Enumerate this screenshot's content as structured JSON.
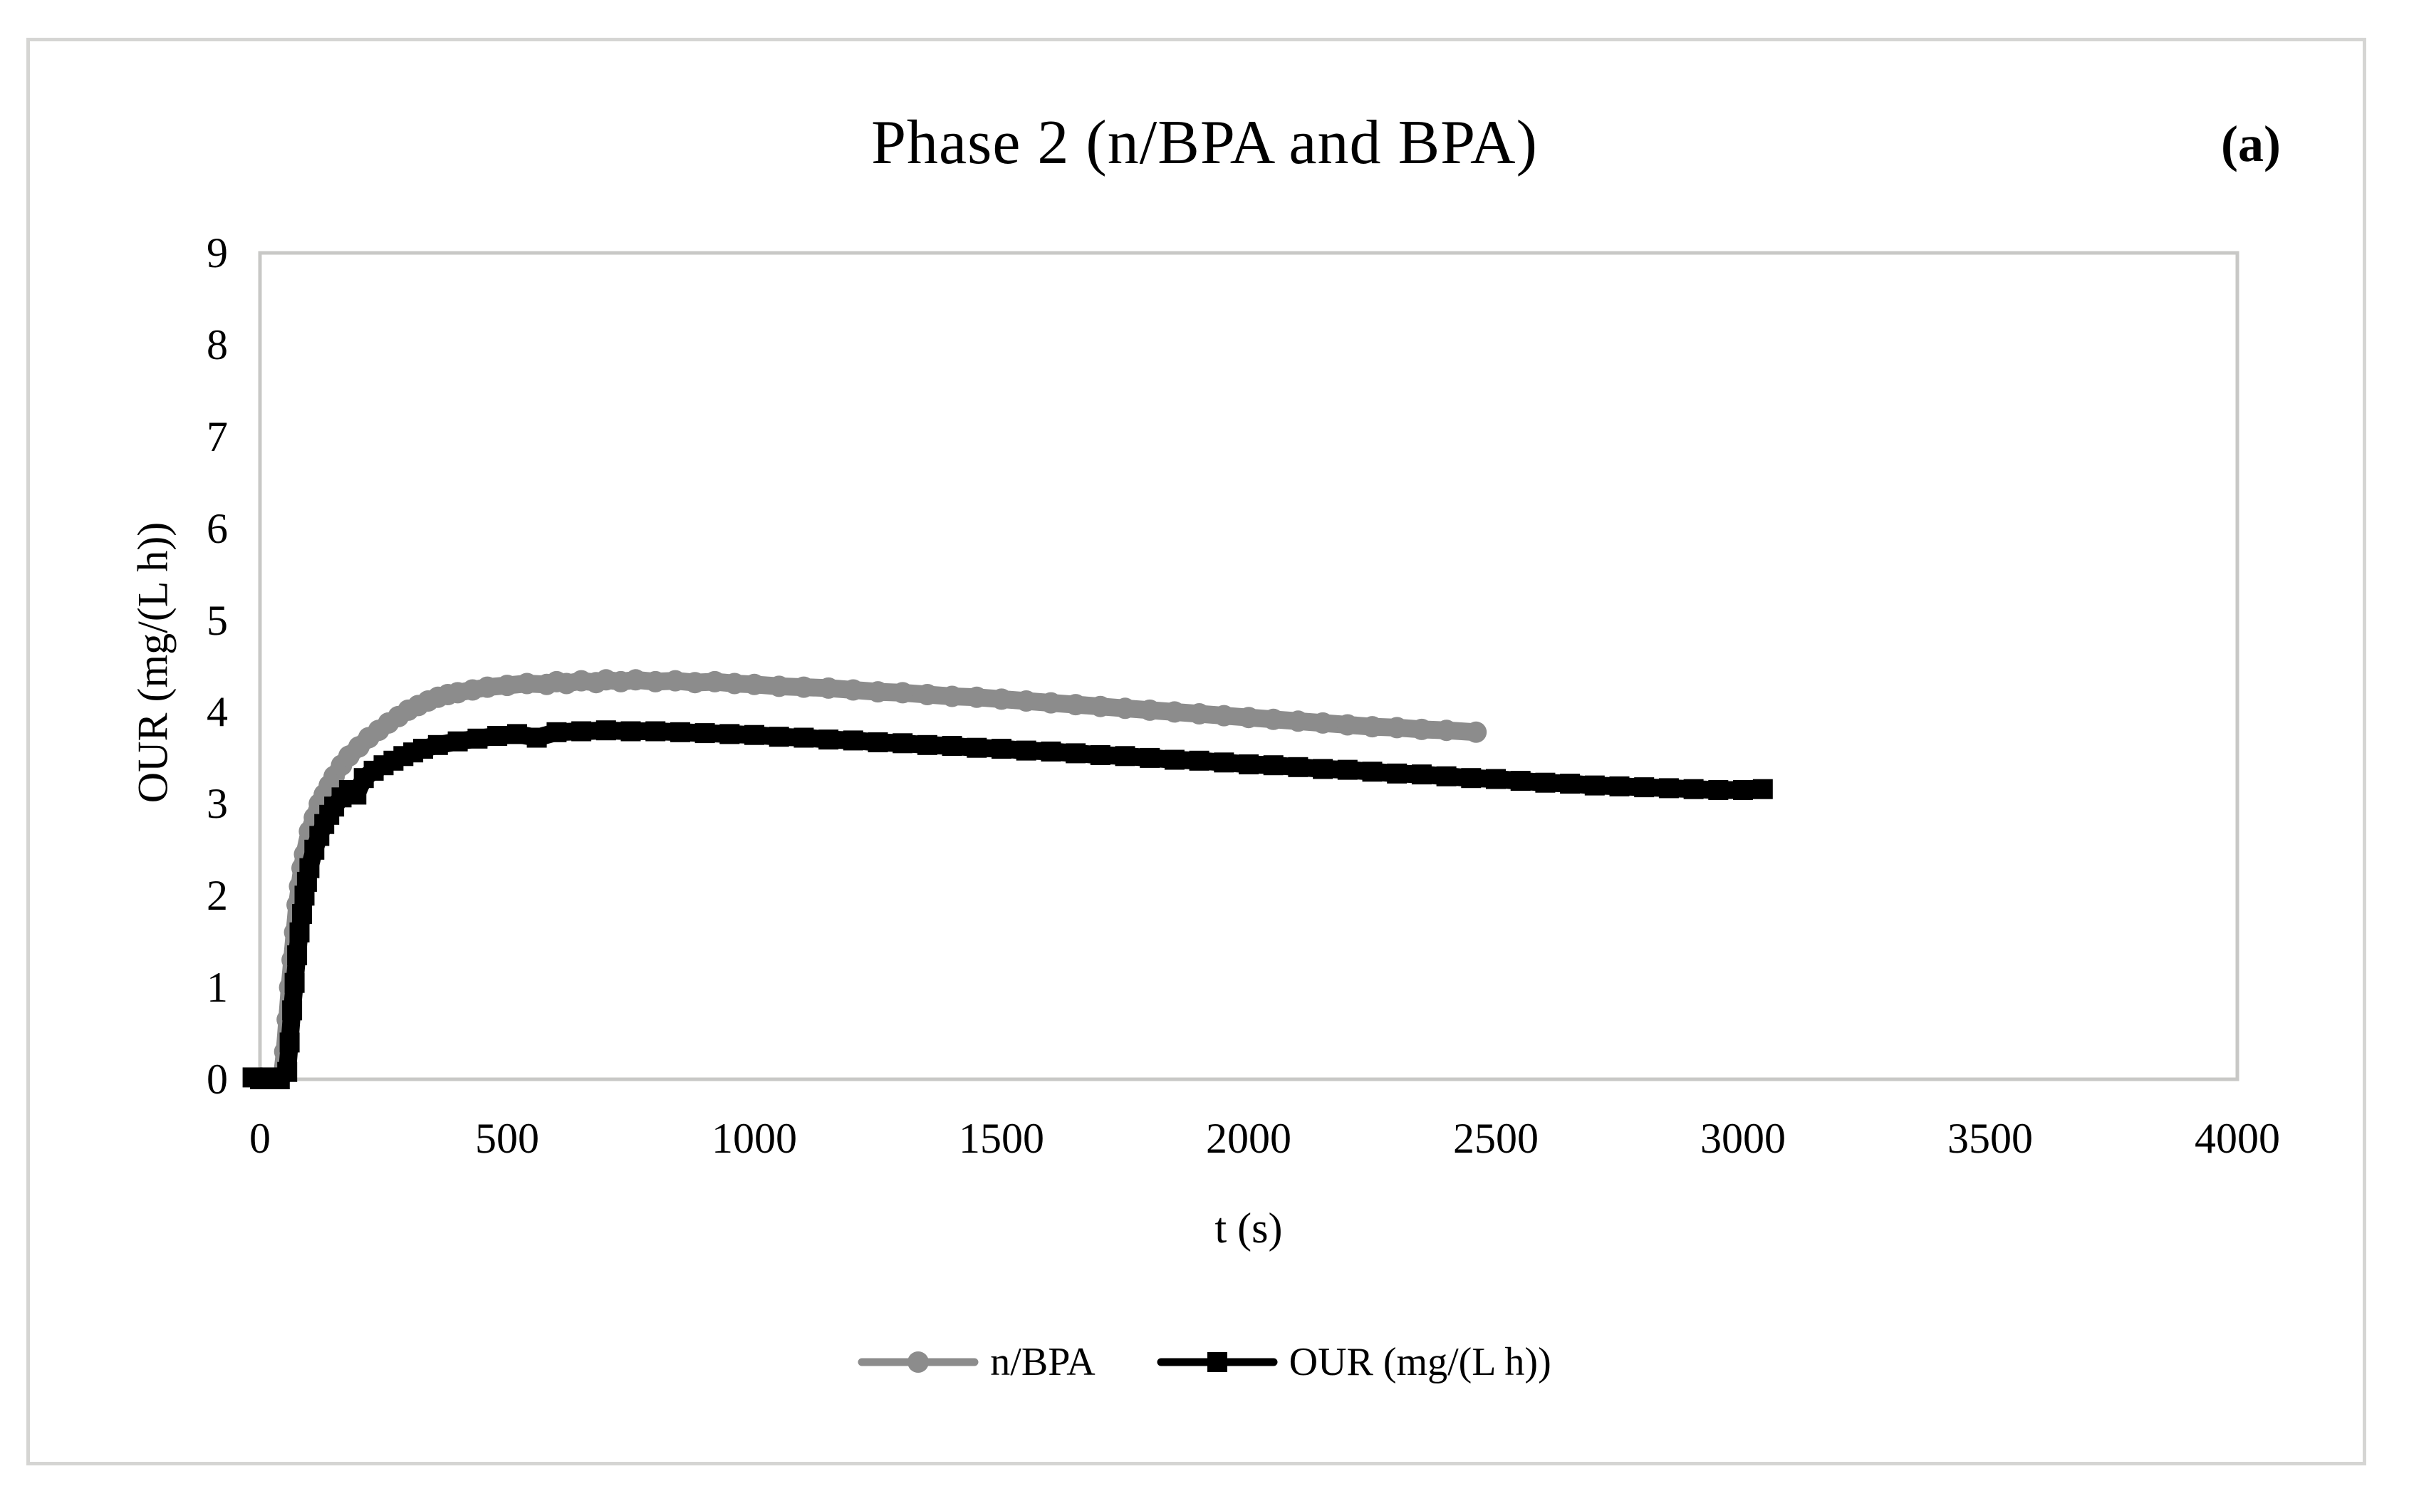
{
  "figure": {
    "panel_label": "(a)"
  },
  "chart_data": {
    "type": "line",
    "title": "Phase 2 (n/BPA and BPA)",
    "xlabel": "t (s)",
    "ylabel": "OUR (mg/(L h))",
    "xlim": [
      0,
      4000
    ],
    "ylim": [
      0,
      9
    ],
    "x_ticks": [
      0,
      500,
      1000,
      1500,
      2000,
      2500,
      3000,
      3500,
      4000
    ],
    "y_ticks": [
      0,
      1,
      2,
      3,
      4,
      5,
      6,
      7,
      8,
      9
    ],
    "grid": false,
    "legend_position": "bottom-center",
    "plot_frame_color": "#c8c8c6",
    "series": [
      {
        "name": "n/BPA",
        "color": "#8c8c8c",
        "marker": "circle",
        "points": [
          [
            45,
            0.05
          ],
          [
            50,
            0.3
          ],
          [
            55,
            0.65
          ],
          [
            60,
            1.0
          ],
          [
            65,
            1.3
          ],
          [
            70,
            1.6
          ],
          [
            75,
            1.9
          ],
          [
            80,
            2.1
          ],
          [
            85,
            2.3
          ],
          [
            90,
            2.45
          ],
          [
            100,
            2.7
          ],
          [
            110,
            2.85
          ],
          [
            120,
            3.0
          ],
          [
            130,
            3.1
          ],
          [
            140,
            3.2
          ],
          [
            150,
            3.3
          ],
          [
            165,
            3.42
          ],
          [
            180,
            3.52
          ],
          [
            200,
            3.62
          ],
          [
            220,
            3.72
          ],
          [
            240,
            3.8
          ],
          [
            260,
            3.88
          ],
          [
            280,
            3.95
          ],
          [
            300,
            4.02
          ],
          [
            320,
            4.07
          ],
          [
            340,
            4.12
          ],
          [
            360,
            4.16
          ],
          [
            380,
            4.19
          ],
          [
            400,
            4.21
          ],
          [
            430,
            4.24
          ],
          [
            460,
            4.27
          ],
          [
            500,
            4.29
          ],
          [
            540,
            4.31
          ],
          [
            580,
            4.3
          ],
          [
            600,
            4.33
          ],
          [
            620,
            4.31
          ],
          [
            650,
            4.34
          ],
          [
            680,
            4.32
          ],
          [
            700,
            4.35
          ],
          [
            730,
            4.33
          ],
          [
            760,
            4.35
          ],
          [
            800,
            4.33
          ],
          [
            840,
            4.34
          ],
          [
            880,
            4.32
          ],
          [
            920,
            4.33
          ],
          [
            960,
            4.31
          ],
          [
            1000,
            4.3
          ],
          [
            1050,
            4.28
          ],
          [
            1100,
            4.27
          ],
          [
            1150,
            4.26
          ],
          [
            1200,
            4.24
          ],
          [
            1250,
            4.22
          ],
          [
            1300,
            4.21
          ],
          [
            1350,
            4.19
          ],
          [
            1400,
            4.17
          ],
          [
            1450,
            4.16
          ],
          [
            1500,
            4.14
          ],
          [
            1550,
            4.12
          ],
          [
            1600,
            4.1
          ],
          [
            1650,
            4.08
          ],
          [
            1700,
            4.06
          ],
          [
            1750,
            4.04
          ],
          [
            1800,
            4.02
          ],
          [
            1850,
            4.0
          ],
          [
            1900,
            3.98
          ],
          [
            1950,
            3.96
          ],
          [
            2000,
            3.94
          ],
          [
            2050,
            3.92
          ],
          [
            2100,
            3.9
          ],
          [
            2150,
            3.88
          ],
          [
            2200,
            3.86
          ],
          [
            2250,
            3.84
          ],
          [
            2300,
            3.83
          ],
          [
            2350,
            3.81
          ],
          [
            2400,
            3.8
          ],
          [
            2460,
            3.78
          ]
        ]
      },
      {
        "name": "OUR (mg/(L h))",
        "color": "#000000",
        "marker": "square",
        "points": [
          [
            -15,
            0.02
          ],
          [
            0,
            0.0
          ],
          [
            20,
            0.02
          ],
          [
            40,
            0.0
          ],
          [
            55,
            0.08
          ],
          [
            60,
            0.4
          ],
          [
            65,
            0.75
          ],
          [
            70,
            1.05
          ],
          [
            75,
            1.35
          ],
          [
            80,
            1.6
          ],
          [
            85,
            1.8
          ],
          [
            90,
            2.0
          ],
          [
            95,
            2.15
          ],
          [
            100,
            2.3
          ],
          [
            110,
            2.5
          ],
          [
            120,
            2.65
          ],
          [
            130,
            2.78
          ],
          [
            140,
            2.88
          ],
          [
            150,
            2.97
          ],
          [
            165,
            3.07
          ],
          [
            180,
            3.15
          ],
          [
            195,
            3.1
          ],
          [
            210,
            3.28
          ],
          [
            230,
            3.36
          ],
          [
            250,
            3.42
          ],
          [
            270,
            3.47
          ],
          [
            290,
            3.52
          ],
          [
            310,
            3.56
          ],
          [
            330,
            3.6
          ],
          [
            360,
            3.64
          ],
          [
            400,
            3.68
          ],
          [
            440,
            3.71
          ],
          [
            480,
            3.74
          ],
          [
            520,
            3.76
          ],
          [
            560,
            3.72
          ],
          [
            600,
            3.78
          ],
          [
            650,
            3.79
          ],
          [
            700,
            3.8
          ],
          [
            750,
            3.79
          ],
          [
            800,
            3.79
          ],
          [
            850,
            3.78
          ],
          [
            900,
            3.77
          ],
          [
            950,
            3.76
          ],
          [
            1000,
            3.75
          ],
          [
            1050,
            3.73
          ],
          [
            1100,
            3.72
          ],
          [
            1150,
            3.7
          ],
          [
            1200,
            3.69
          ],
          [
            1250,
            3.67
          ],
          [
            1300,
            3.66
          ],
          [
            1350,
            3.64
          ],
          [
            1400,
            3.63
          ],
          [
            1450,
            3.61
          ],
          [
            1500,
            3.6
          ],
          [
            1550,
            3.58
          ],
          [
            1600,
            3.57
          ],
          [
            1650,
            3.55
          ],
          [
            1700,
            3.53
          ],
          [
            1750,
            3.52
          ],
          [
            1800,
            3.5
          ],
          [
            1850,
            3.48
          ],
          [
            1900,
            3.47
          ],
          [
            1950,
            3.45
          ],
          [
            2000,
            3.43
          ],
          [
            2050,
            3.42
          ],
          [
            2100,
            3.4
          ],
          [
            2150,
            3.38
          ],
          [
            2200,
            3.37
          ],
          [
            2250,
            3.35
          ],
          [
            2300,
            3.33
          ],
          [
            2350,
            3.32
          ],
          [
            2400,
            3.3
          ],
          [
            2450,
            3.28
          ],
          [
            2500,
            3.27
          ],
          [
            2550,
            3.25
          ],
          [
            2600,
            3.23
          ],
          [
            2650,
            3.22
          ],
          [
            2700,
            3.2
          ],
          [
            2750,
            3.19
          ],
          [
            2800,
            3.18
          ],
          [
            2850,
            3.17
          ],
          [
            2900,
            3.16
          ],
          [
            2950,
            3.15
          ],
          [
            3000,
            3.15
          ],
          [
            3040,
            3.16
          ]
        ]
      }
    ]
  }
}
